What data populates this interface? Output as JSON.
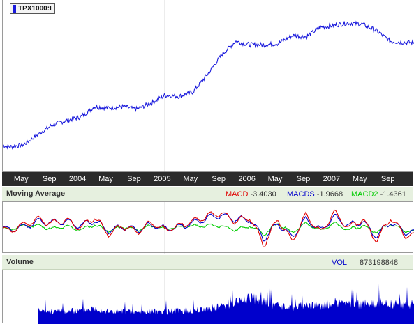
{
  "ticker": {
    "label": "TPX1000:I",
    "color": "#1a1adc"
  },
  "date_axis": {
    "labels": [
      "May",
      "Sep",
      "2004",
      "May",
      "Sep",
      "2005",
      "May",
      "Sep",
      "2006",
      "May",
      "Sep",
      "2007",
      "May",
      "Sep"
    ]
  },
  "macd_header": {
    "title": "Moving Average",
    "legend": [
      {
        "name": "MACD",
        "value": "-3.4030",
        "color": "#e00000"
      },
      {
        "name": "MACDS",
        "value": "-1.9668",
        "color": "#0000cc"
      },
      {
        "name": "MACD2",
        "value": "-1.4361",
        "color": "#00cc00"
      }
    ]
  },
  "volume_header": {
    "title": "Volume",
    "label": "VOL",
    "value": "873198848",
    "color": "#0000cc"
  },
  "chart_data": [
    {
      "type": "line",
      "x": [
        "2003-01",
        "2003-03",
        "2003-05",
        "2003-07",
        "2003-09",
        "2003-11",
        "2004-01",
        "2004-03",
        "2004-05",
        "2004-07",
        "2004-09",
        "2004-11",
        "2005-01",
        "2005-03",
        "2005-05",
        "2005-07",
        "2005-09",
        "2005-11",
        "2006-01",
        "2006-03",
        "2006-05",
        "2006-07",
        "2006-09",
        "2006-11",
        "2007-01",
        "2007-03",
        "2007-05",
        "2007-07",
        "2007-09",
        "2007-11"
      ],
      "series": [
        {
          "name": "TPX1000:I",
          "values": [
            5,
            2,
            4,
            13,
            21,
            25,
            28,
            37,
            36,
            37,
            35,
            40,
            47,
            46,
            50,
            65,
            82,
            94,
            91,
            91,
            92,
            99,
            98,
            106,
            108,
            110,
            109,
            103,
            94,
            93
          ]
        }
      ],
      "ylim": [
        -20,
        130
      ]
    },
    {
      "type": "line",
      "x": [
        "2003-01",
        "2003-03",
        "2003-05",
        "2003-07",
        "2003-09",
        "2003-11",
        "2004-01",
        "2004-03",
        "2004-05",
        "2004-07",
        "2004-09",
        "2004-11",
        "2005-01",
        "2005-03",
        "2005-05",
        "2005-07",
        "2005-09",
        "2005-11",
        "2006-01",
        "2006-03",
        "2006-05",
        "2006-07",
        "2006-09",
        "2006-11",
        "2007-01",
        "2007-03",
        "2007-05",
        "2007-07",
        "2007-09",
        "2007-11"
      ],
      "series": [
        {
          "name": "MACD",
          "values": [
            0.5,
            -1.5,
            1.5,
            4.0,
            2.0,
            3.5,
            0.0,
            5.0,
            -3.0,
            1.0,
            -2.0,
            2.5,
            -1.0,
            1.0,
            3.0,
            5.5,
            7.0,
            3.0,
            5.0,
            -8.0,
            4.0,
            -6.0,
            6.0,
            -2.0,
            7.0,
            0.0,
            4.0,
            -6.0,
            5.0,
            -3.4
          ]
        },
        {
          "name": "MACDS",
          "values": [
            0.3,
            -0.8,
            0.5,
            3.0,
            2.5,
            2.8,
            1.0,
            3.5,
            -1.5,
            0.5,
            -1.0,
            1.5,
            -0.5,
            0.5,
            2.2,
            4.5,
            6.0,
            4.0,
            4.0,
            -5.0,
            2.0,
            -4.0,
            4.0,
            -1.0,
            5.0,
            1.0,
            3.0,
            -4.0,
            3.0,
            -2.0
          ]
        },
        {
          "name": "MACD2",
          "values": [
            0.2,
            -0.7,
            1.0,
            1.0,
            -0.5,
            0.7,
            -1.0,
            1.5,
            -1.5,
            0.5,
            -1.0,
            1.0,
            -0.5,
            0.5,
            0.8,
            1.0,
            1.0,
            -1.0,
            1.0,
            -3.0,
            2.0,
            -2.0,
            2.0,
            -1.0,
            2.0,
            -1.0,
            1.0,
            -2.0,
            2.0,
            -1.4
          ]
        }
      ],
      "ylim": [
        -12,
        12
      ]
    },
    {
      "type": "bar",
      "x": [
        "2003-07",
        "2003-09",
        "2003-11",
        "2004-01",
        "2004-03",
        "2004-05",
        "2004-07",
        "2004-09",
        "2004-11",
        "2005-01",
        "2005-03",
        "2005-05",
        "2005-07",
        "2005-09",
        "2005-11",
        "2006-01",
        "2006-03",
        "2006-05",
        "2006-07",
        "2006-09",
        "2006-11",
        "2007-01",
        "2007-03",
        "2007-05",
        "2007-07",
        "2007-09",
        "2007-11"
      ],
      "series": [
        {
          "name": "VOL",
          "values": [
            14,
            14,
            14,
            15,
            18,
            14,
            14,
            13,
            14,
            14,
            15,
            15,
            17,
            20,
            25,
            30,
            24,
            20,
            18,
            20,
            20,
            24,
            22,
            22,
            24,
            22,
            22
          ]
        }
      ],
      "ylim": [
        0,
        60
      ]
    }
  ]
}
